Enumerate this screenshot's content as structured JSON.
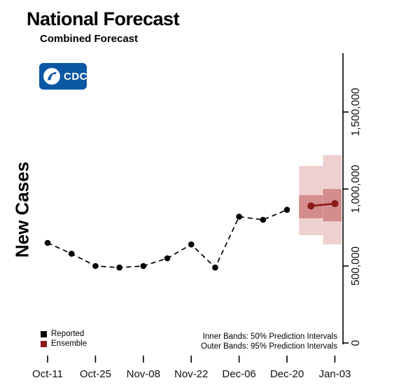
{
  "header": {
    "title": "National Forecast",
    "subtitle": "Combined Forecast"
  },
  "logo": {
    "text": "CDC",
    "color": "#0b57a4"
  },
  "axis": {
    "y_label": "New Cases"
  },
  "legend": {
    "items": [
      {
        "label": "Reported",
        "color": "#000000"
      },
      {
        "label": "Ensemble",
        "color": "#8b1a1a"
      }
    ]
  },
  "notes": {
    "inner": "Inner Bands: 50% Prediction Intervals",
    "outer": "Outer Bands: 95% Prediction Intervals"
  },
  "chart_data": {
    "type": "line",
    "title": "National Forecast",
    "subtitle": "Combined Forecast",
    "xlabel": "",
    "ylabel": "New Cases",
    "grid": false,
    "legend_position": "bottom-left",
    "x_dates": [
      "Oct-11",
      "Oct-18",
      "Oct-25",
      "Nov-01",
      "Nov-08",
      "Nov-15",
      "Nov-22",
      "Nov-29",
      "Dec-06",
      "Dec-13",
      "Dec-20",
      "Dec-27",
      "Jan-03"
    ],
    "x_tick_labels": [
      "Oct-11",
      "Oct-25",
      "Nov-08",
      "Nov-22",
      "Dec-06",
      "Dec-20",
      "Jan-03"
    ],
    "y_ticks": [
      0,
      500000,
      1000000,
      1500000
    ],
    "y_tick_labels": [
      "0",
      "500,000",
      "1,000,000",
      "1,500,000"
    ],
    "ylim": [
      0,
      1850000
    ],
    "series": [
      {
        "name": "Reported",
        "color": "#000000",
        "line_style": "dashed",
        "x": [
          "Oct-11",
          "Oct-18",
          "Oct-25",
          "Nov-01",
          "Nov-08",
          "Nov-15",
          "Nov-22",
          "Nov-29",
          "Dec-06",
          "Dec-13",
          "Dec-20"
        ],
        "values": [
          650000,
          580000,
          500000,
          490000,
          500000,
          550000,
          640000,
          490000,
          820000,
          800000,
          865000
        ]
      },
      {
        "name": "Ensemble",
        "color": "#8b1a1a",
        "line_style": "solid",
        "x": [
          "Dec-27",
          "Jan-03"
        ],
        "values": [
          890000,
          905000
        ]
      }
    ],
    "prediction_intervals": {
      "inner_level": "50%",
      "outer_level": "95%",
      "inner_color": "#b23c3c",
      "inner_opacity": 0.45,
      "outer_color": "#cd7878",
      "outer_opacity": 0.35,
      "weeks": [
        {
          "date": "Dec-27",
          "inner": [
            810000,
            960000
          ],
          "outer": [
            700000,
            1150000
          ]
        },
        {
          "date": "Jan-03",
          "inner": [
            790000,
            1000000
          ],
          "outer": [
            640000,
            1220000
          ]
        }
      ]
    }
  }
}
